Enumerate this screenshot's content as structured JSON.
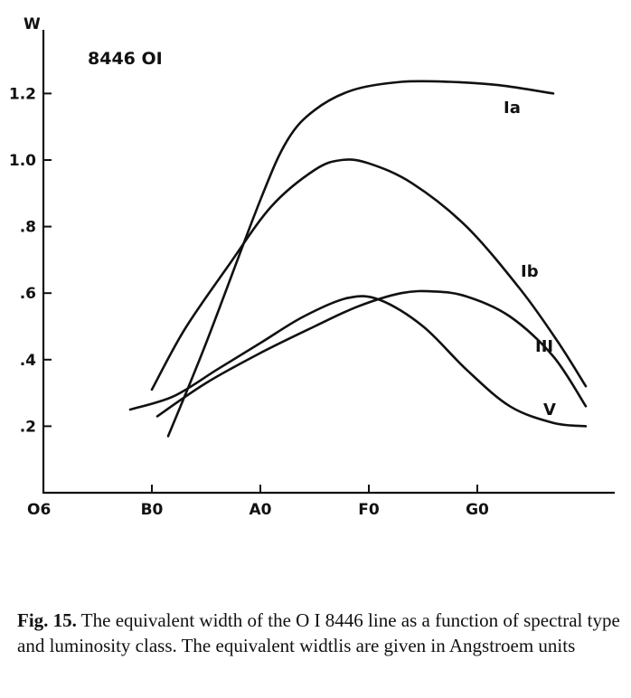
{
  "chart_data": {
    "type": "line",
    "title": "",
    "ylabel": "W",
    "xlabel": "",
    "inset_label": "8446 OI",
    "x_ticks": [
      "O6",
      "B0",
      "A0",
      "F0",
      "G0"
    ],
    "y_ticks": [
      ".2",
      ".4",
      ".6",
      ".8",
      "1.0",
      "1.2"
    ],
    "ylim": [
      0.0,
      1.42
    ],
    "grid": false,
    "series": [
      {
        "name": "Ia",
        "x": [
          1.15,
          1.5,
          2.0,
          2.25,
          2.5,
          2.85,
          3.3,
          3.75,
          4.2,
          4.7
        ],
        "y": [
          0.17,
          0.45,
          0.88,
          1.06,
          1.15,
          1.21,
          1.235,
          1.235,
          1.225,
          1.2
        ]
      },
      {
        "name": "Ib",
        "x": [
          1.0,
          1.3,
          1.7,
          2.1,
          2.5,
          2.75,
          3.0,
          3.4,
          3.9,
          4.4,
          4.75,
          5.0
        ],
        "y": [
          0.31,
          0.49,
          0.68,
          0.86,
          0.97,
          1.0,
          0.99,
          0.93,
          0.8,
          0.61,
          0.45,
          0.32
        ]
      },
      {
        "name": "III",
        "x": [
          1.05,
          1.5,
          2.0,
          2.5,
          2.9,
          3.3,
          3.6,
          3.9,
          4.3,
          4.7,
          5.0
        ],
        "y": [
          0.23,
          0.33,
          0.42,
          0.5,
          0.56,
          0.6,
          0.605,
          0.59,
          0.53,
          0.41,
          0.26
        ]
      },
      {
        "name": "V",
        "x": [
          0.8,
          1.2,
          1.6,
          2.0,
          2.4,
          2.8,
          3.1,
          3.5,
          3.9,
          4.3,
          4.7,
          5.0
        ],
        "y": [
          0.25,
          0.29,
          0.37,
          0.45,
          0.53,
          0.585,
          0.58,
          0.5,
          0.37,
          0.26,
          0.21,
          0.2
        ]
      }
    ]
  },
  "caption": {
    "label": "Fig. 15.",
    "text": " The equivalent width of the O I 8446 line as a function of spectral type and luminosity class. The equivalent widtlis are given in Angstroem units"
  }
}
